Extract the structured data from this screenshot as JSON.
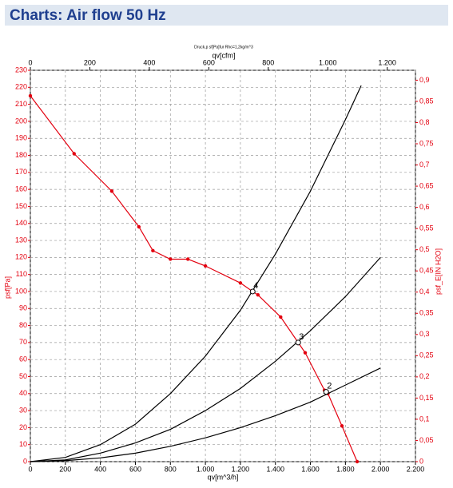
{
  "header": {
    "title": "Charts: Air flow 50 Hz"
  },
  "chart_data": {
    "type": "line",
    "title": "Druck,p sf[Pa]fur Rho=1,2kg/m^3",
    "xlabel": "qv[m^3/h]",
    "x2label": "qv[cfm]",
    "ylabel": "psf[Pa]",
    "y2label": "psf_E[IN H2O]",
    "xlim": [
      0,
      2200
    ],
    "xticks": [
      0,
      200,
      400,
      600,
      800,
      {
        "value": 1000,
        "label": "1.000"
      },
      {
        "value": 1200,
        "label": "1.200"
      },
      {
        "value": 1400,
        "label": "1.400"
      },
      {
        "value": 1600,
        "label": "1.600"
      },
      {
        "value": 1800,
        "label": "1.800"
      },
      {
        "value": 2000,
        "label": "2.000"
      },
      {
        "value": 2200,
        "label": "2.200"
      }
    ],
    "x2lim": [
      0,
      1294.9
    ],
    "x2ticks": [
      0,
      200,
      400,
      600,
      800,
      {
        "value": 1000,
        "label": "1.000"
      },
      {
        "value": 1200,
        "label": "1.200"
      }
    ],
    "ylim": [
      0,
      230
    ],
    "yticks": [
      0,
      10,
      20,
      30,
      40,
      50,
      60,
      70,
      80,
      90,
      100,
      110,
      120,
      130,
      140,
      150,
      160,
      170,
      180,
      190,
      200,
      210,
      220,
      230
    ],
    "y2lim": [
      0,
      0.9234
    ],
    "y2ticks": [
      0,
      {
        "value": 0.05,
        "label": "0,05"
      },
      {
        "value": 0.1,
        "label": "0,1"
      },
      {
        "value": 0.15,
        "label": "0,15"
      },
      {
        "value": 0.2,
        "label": "0,2"
      },
      {
        "value": 0.25,
        "label": "0,25"
      },
      {
        "value": 0.3,
        "label": "0,3"
      },
      {
        "value": 0.35,
        "label": "0,35"
      },
      {
        "value": 0.4,
        "label": "0,4"
      },
      {
        "value": 0.45,
        "label": "0,45"
      },
      {
        "value": 0.5,
        "label": "0,5"
      },
      {
        "value": 0.55,
        "label": "0,55"
      },
      {
        "value": 0.6,
        "label": "0,6"
      },
      {
        "value": 0.65,
        "label": "0,65"
      },
      {
        "value": 0.7,
        "label": "0,7"
      },
      {
        "value": 0.75,
        "label": "0,75"
      },
      {
        "value": 0.8,
        "label": "0,8"
      },
      {
        "value": 0.85,
        "label": "0,85"
      },
      {
        "value": 0.9,
        "label": "0,9"
      }
    ],
    "grid": true,
    "series": [
      {
        "color": "#e3000f",
        "markers": true,
        "x": [
          0,
          250,
          465,
          620,
          700,
          800,
          900,
          1000,
          1200,
          1270,
          1300,
          1430,
          1530,
          1570,
          1680,
          1700,
          1780,
          1867
        ],
        "values": [
          215,
          181,
          159,
          138,
          124,
          119,
          119,
          115,
          105,
          100,
          98,
          85,
          70,
          64,
          42,
          40,
          21,
          0
        ]
      },
      {
        "color": "#000000",
        "markers": false,
        "x": [
          0,
          200,
          400,
          600,
          800,
          1000,
          1200,
          1400,
          1600,
          1800,
          1890
        ],
        "values": [
          0,
          2.5,
          10,
          22,
          40,
          62,
          89,
          122,
          159,
          201,
          221
        ]
      },
      {
        "color": "#000000",
        "markers": false,
        "x": [
          0,
          200,
          400,
          600,
          800,
          1000,
          1200,
          1400,
          1600,
          1800,
          2000
        ],
        "values": [
          0,
          1,
          5,
          11,
          19,
          30,
          43,
          59,
          77,
          97,
          120
        ]
      },
      {
        "color": "#000000",
        "markers": false,
        "x": [
          0,
          200,
          400,
          600,
          800,
          1000,
          1200,
          1400,
          1600,
          1800,
          2000
        ],
        "values": [
          0,
          0.6,
          2.2,
          5,
          9,
          14,
          20,
          27,
          35,
          45,
          55
        ]
      }
    ],
    "annotations": [
      {
        "text": "4",
        "x": 1270,
        "y": 100
      },
      {
        "text": "3",
        "x": 1530,
        "y": 70
      },
      {
        "text": "2",
        "x": 1690,
        "y": 41
      }
    ]
  }
}
